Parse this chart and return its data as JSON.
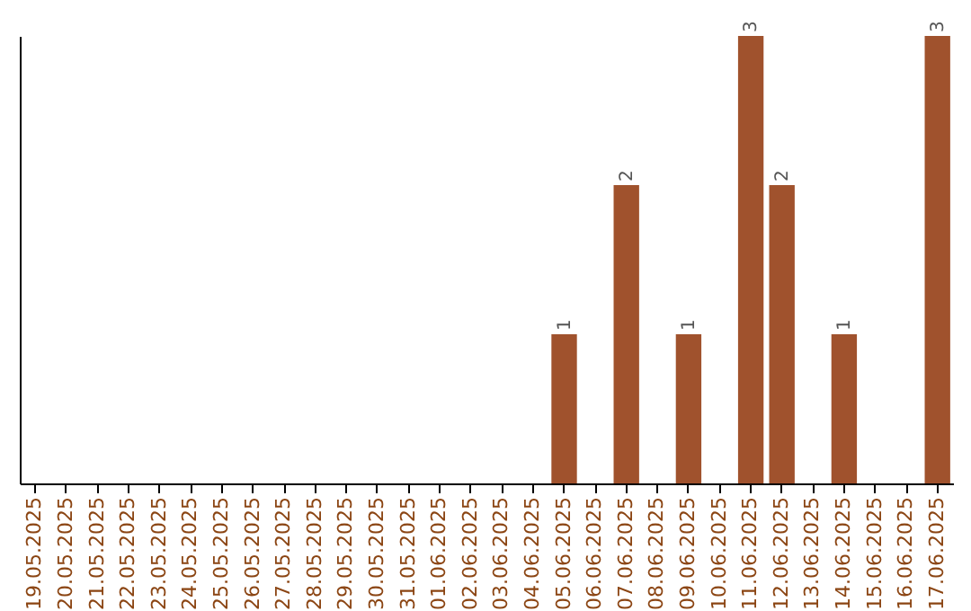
{
  "chart_data": {
    "type": "bar",
    "categories": [
      "19.05.2025",
      "20.05.2025",
      "21.05.2025",
      "22.05.2025",
      "23.05.2025",
      "24.05.2025",
      "25.05.2025",
      "26.05.2025",
      "27.05.2025",
      "28.05.2025",
      "29.05.2025",
      "30.05.2025",
      "31.05.2025",
      "01.06.2025",
      "02.06.2025",
      "03.06.2025",
      "04.06.2025",
      "05.06.2025",
      "06.06.2025",
      "07.06.2025",
      "08.06.2025",
      "09.06.2025",
      "10.06.2025",
      "11.06.2025",
      "12.06.2025",
      "13.06.2025",
      "14.06.2025",
      "15.06.2025",
      "16.06.2025",
      "17.06.2025"
    ],
    "values": [
      null,
      null,
      null,
      null,
      null,
      null,
      null,
      null,
      null,
      null,
      null,
      null,
      null,
      null,
      null,
      null,
      null,
      1,
      null,
      2,
      null,
      1,
      null,
      3,
      2,
      null,
      1,
      null,
      null,
      3
    ],
    "data_labels": true,
    "color": "#a0522d",
    "tick_labels": "x"
  }
}
